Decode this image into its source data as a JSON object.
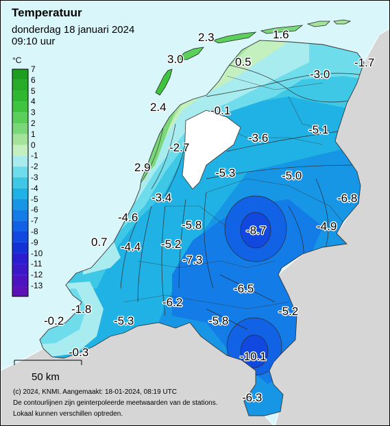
{
  "header": {
    "title": "Temperatuur",
    "date": "donderdag 18 januari 2024",
    "time": "09:10 uur"
  },
  "legend": {
    "unit": "°C",
    "levels": [
      {
        "value": "7",
        "color": "#1e9e1e"
      },
      {
        "value": "6",
        "color": "#26ac26"
      },
      {
        "value": "5",
        "color": "#30b830"
      },
      {
        "value": "4",
        "color": "#3fc43f"
      },
      {
        "value": "3",
        "color": "#5ad05a"
      },
      {
        "value": "2",
        "color": "#7ad87a"
      },
      {
        "value": "1",
        "color": "#a4e49a"
      },
      {
        "value": "0",
        "color": "#c4f0c0"
      },
      {
        "value": "-1",
        "color": "#a8ecf0"
      },
      {
        "value": "-2",
        "color": "#6fdcec"
      },
      {
        "value": "-3",
        "color": "#3ec8e6"
      },
      {
        "value": "-4",
        "color": "#20b2e4"
      },
      {
        "value": "-5",
        "color": "#1796e6"
      },
      {
        "value": "-6",
        "color": "#137ce6"
      },
      {
        "value": "-7",
        "color": "#1262e6"
      },
      {
        "value": "-8",
        "color": "#1148e0"
      },
      {
        "value": "-9",
        "color": "#1232d8"
      },
      {
        "value": "-10",
        "color": "#2a1ed0"
      },
      {
        "value": "-11",
        "color": "#3b18c8"
      },
      {
        "value": "-12",
        "color": "#4c14c0"
      },
      {
        "value": "-13",
        "color": "#5c12b8"
      }
    ]
  },
  "stations": [
    {
      "label": "2.3"
    },
    {
      "label": "1.6"
    },
    {
      "label": "3.0"
    },
    {
      "label": "0.5"
    },
    {
      "label": "-1.7"
    },
    {
      "label": "-3.0"
    },
    {
      "label": "2.4"
    },
    {
      "label": "-0.1"
    },
    {
      "label": "-5.1"
    },
    {
      "label": "-3.6"
    },
    {
      "label": "-2.7"
    },
    {
      "label": "2.9"
    },
    {
      "label": "-5.3"
    },
    {
      "label": "-5.0"
    },
    {
      "label": "-3.4"
    },
    {
      "label": "-6.8"
    },
    {
      "label": "-4.6"
    },
    {
      "label": "-5.8"
    },
    {
      "label": "-8.7"
    },
    {
      "label": "-4.9"
    },
    {
      "label": "0.7"
    },
    {
      "label": "-4.4"
    },
    {
      "label": "-5.2"
    },
    {
      "label": "-7.3"
    },
    {
      "label": "-6.5"
    },
    {
      "label": "-1.8"
    },
    {
      "label": "-6.2"
    },
    {
      "label": "-5.2"
    },
    {
      "label": "-0.2"
    },
    {
      "label": "-5.3"
    },
    {
      "label": "-5.8"
    },
    {
      "label": "-0.3"
    },
    {
      "label": "-10.1"
    },
    {
      "label": "-6.3"
    }
  ],
  "scale": {
    "label": "50 km"
  },
  "footer": {
    "line1": "(c) 2024, KNMI. Aangemaakt: 18-01-2024, 08:19 UTC",
    "line2": "De contourlijnen zijn geinterpoleerde meetwaarden van de stations.",
    "line3": "Lokaal kunnen verschillen optreden."
  },
  "colors": {
    "sea": "#d9f7fb",
    "foreign_land": "#d6d6d6"
  }
}
